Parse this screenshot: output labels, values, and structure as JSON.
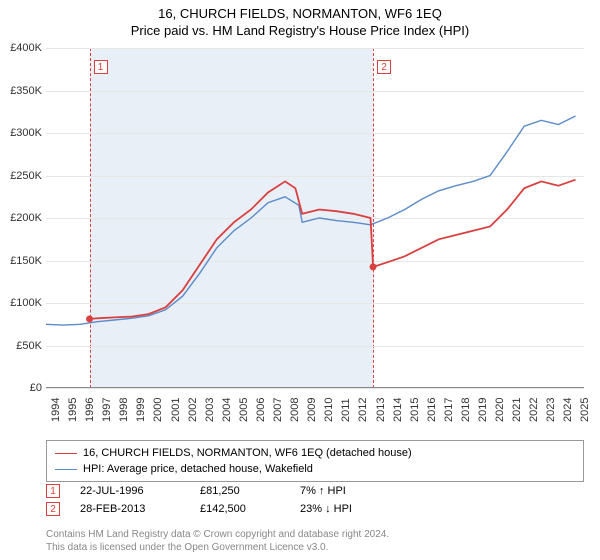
{
  "title": "16, CHURCH FIELDS, NORMANTON, WF6 1EQ",
  "subtitle": "Price paid vs. HM Land Registry's House Price Index (HPI)",
  "chart": {
    "type": "line",
    "x_years": [
      1994,
      1995,
      1996,
      1997,
      1998,
      1999,
      2000,
      2001,
      2002,
      2003,
      2004,
      2005,
      2006,
      2007,
      2008,
      2009,
      2010,
      2011,
      2012,
      2013,
      2014,
      2015,
      2016,
      2017,
      2018,
      2019,
      2020,
      2021,
      2022,
      2023,
      2024,
      2025
    ],
    "xlim": [
      1994,
      2025.5
    ],
    "ylim": [
      0,
      400000
    ],
    "ytick_step": 50000,
    "ytick_prefix": "£",
    "ytick_suffix": "K",
    "grid_color": "#e6e6e6",
    "background_color": "#ffffff",
    "axis_fontsize": 11,
    "series": [
      {
        "name": "16, CHURCH FIELDS, NORMANTON, WF6 1EQ (detached house)",
        "color": "#d94040",
        "width": 1.8,
        "data": [
          [
            1996.55,
            81250
          ],
          [
            1997,
            82000
          ],
          [
            1998,
            83000
          ],
          [
            1999,
            84000
          ],
          [
            2000,
            87000
          ],
          [
            2001,
            95000
          ],
          [
            2002,
            115000
          ],
          [
            2003,
            145000
          ],
          [
            2004,
            175000
          ],
          [
            2005,
            195000
          ],
          [
            2006,
            210000
          ],
          [
            2007,
            230000
          ],
          [
            2008,
            243000
          ],
          [
            2008.6,
            235000
          ],
          [
            2009,
            205000
          ],
          [
            2010,
            210000
          ],
          [
            2011,
            208000
          ],
          [
            2012,
            205000
          ],
          [
            2013,
            200000
          ],
          [
            2013.15,
            142500
          ],
          [
            2014,
            148000
          ],
          [
            2015,
            155000
          ],
          [
            2016,
            165000
          ],
          [
            2017,
            175000
          ],
          [
            2018,
            180000
          ],
          [
            2019,
            185000
          ],
          [
            2020,
            190000
          ],
          [
            2021,
            210000
          ],
          [
            2022,
            235000
          ],
          [
            2023,
            243000
          ],
          [
            2024,
            238000
          ],
          [
            2025,
            245000
          ]
        ]
      },
      {
        "name": "HPI: Average price, detached house, Wakefield",
        "color": "#5b8bc9",
        "width": 1.4,
        "data": [
          [
            1994,
            75000
          ],
          [
            1995,
            74000
          ],
          [
            1996,
            75000
          ],
          [
            1997,
            78000
          ],
          [
            1998,
            80000
          ],
          [
            1999,
            82000
          ],
          [
            2000,
            85000
          ],
          [
            2001,
            92000
          ],
          [
            2002,
            108000
          ],
          [
            2003,
            135000
          ],
          [
            2004,
            165000
          ],
          [
            2005,
            185000
          ],
          [
            2006,
            200000
          ],
          [
            2007,
            218000
          ],
          [
            2008,
            225000
          ],
          [
            2008.8,
            215000
          ],
          [
            2009,
            195000
          ],
          [
            2010,
            200000
          ],
          [
            2011,
            197000
          ],
          [
            2012,
            195000
          ],
          [
            2013,
            192000
          ],
          [
            2014,
            200000
          ],
          [
            2015,
            210000
          ],
          [
            2016,
            222000
          ],
          [
            2017,
            232000
          ],
          [
            2018,
            238000
          ],
          [
            2019,
            243000
          ],
          [
            2020,
            250000
          ],
          [
            2021,
            278000
          ],
          [
            2022,
            308000
          ],
          [
            2023,
            315000
          ],
          [
            2024,
            310000
          ],
          [
            2025,
            320000
          ]
        ]
      }
    ],
    "sale_band": {
      "start": 1996.55,
      "end": 2013.15,
      "color": "#e9eff7"
    },
    "sale_markers": [
      {
        "id": "1",
        "year": 1996.55,
        "price": 81250
      },
      {
        "id": "2",
        "year": 2013.15,
        "price": 142500
      }
    ]
  },
  "legend": {
    "items": [
      {
        "color": "#d94040",
        "width": 1.8,
        "label": "16, CHURCH FIELDS, NORMANTON, WF6 1EQ (detached house)"
      },
      {
        "color": "#5b8bc9",
        "width": 1.4,
        "label": "HPI: Average price, detached house, Wakefield"
      }
    ]
  },
  "sales_table": [
    {
      "id": "1",
      "date": "22-JUL-1996",
      "price": "£81,250",
      "pct": "7%",
      "arrow": "up",
      "vs": "HPI"
    },
    {
      "id": "2",
      "date": "28-FEB-2013",
      "price": "£142,500",
      "pct": "23%",
      "arrow": "down",
      "vs": "HPI"
    }
  ],
  "footer_line1": "Contains HM Land Registry data © Crown copyright and database right 2024.",
  "footer_line2": "This data is licensed under the Open Government Licence v3.0."
}
